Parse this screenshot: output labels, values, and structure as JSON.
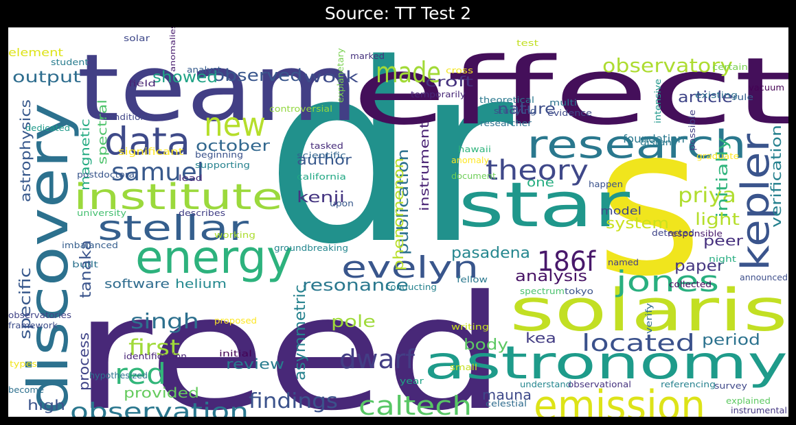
{
  "title": "Source: TT Test 2",
  "background": "#ffffff",
  "frame_color": "#000000",
  "colormap": "viridis",
  "words": [
    {
      "text": "dr",
      "color": "#21918c"
    },
    {
      "text": "reed",
      "color": "#482878"
    },
    {
      "text": "s",
      "color": "#f0e51d"
    },
    {
      "text": "effect",
      "color": "#440f5a"
    },
    {
      "text": "team",
      "color": "#423f85"
    },
    {
      "text": "discovery",
      "color": "#2c718e"
    },
    {
      "text": "solaris",
      "color": "#c2df23"
    },
    {
      "text": "star",
      "color": "#1f978b"
    },
    {
      "text": "astronomy",
      "color": "#1e9b8a"
    },
    {
      "text": "emission",
      "color": "#dde318"
    },
    {
      "text": "energy",
      "color": "#2db27d"
    },
    {
      "text": "research",
      "color": "#2a788e"
    },
    {
      "text": "institute",
      "color": "#9bd93c"
    },
    {
      "text": "stellar",
      "color": "#355f8d"
    },
    {
      "text": "kepler",
      "color": "#3a548c"
    },
    {
      "text": "186f",
      "color": "#48186a"
    },
    {
      "text": "data",
      "color": "#3e4a89"
    },
    {
      "text": "new",
      "color": "#b5de2b"
    },
    {
      "text": "evelyn",
      "color": "#39568c"
    },
    {
      "text": "made",
      "color": "#a2da37"
    },
    {
      "text": "samuel",
      "color": "#38598c"
    },
    {
      "text": "theory",
      "color": "#3f4889"
    },
    {
      "text": "jones",
      "color": "#29af7f"
    },
    {
      "text": "observation",
      "color": "#2a778e"
    },
    {
      "text": "caltech",
      "color": "#58c765"
    },
    {
      "text": "located",
      "color": "#3b518b"
    },
    {
      "text": "dwarf",
      "color": "#433e85"
    },
    {
      "text": "observatory",
      "color": "#addc30"
    },
    {
      "text": "red",
      "color": "#32b67a"
    },
    {
      "text": "findings",
      "color": "#3b528b"
    },
    {
      "text": "first",
      "color": "#a0da39"
    },
    {
      "text": "singh",
      "color": "#2d708e"
    },
    {
      "text": "priya",
      "color": "#b0dd2f"
    },
    {
      "text": "resonance",
      "color": "#2a788e"
    },
    {
      "text": "analysis",
      "color": "#471365"
    },
    {
      "text": "pasadena",
      "color": "#24868e"
    },
    {
      "text": "observed",
      "color": "#39568c"
    },
    {
      "text": "output",
      "color": "#2e6d8e"
    },
    {
      "text": "showed",
      "color": "#20a386"
    },
    {
      "text": "work",
      "color": "#3e4c8a"
    },
    {
      "text": "croft",
      "color": "#46337f"
    },
    {
      "text": "nature",
      "color": "#3d4e8a"
    },
    {
      "text": "article",
      "color": "#404688"
    },
    {
      "text": "october",
      "color": "#31678e"
    },
    {
      "text": "kenji",
      "color": "#453581"
    },
    {
      "text": "author",
      "color": "#38588c"
    },
    {
      "text": "publication",
      "color": "#2c718e"
    },
    {
      "text": "phenomenon",
      "color": "#b8de29"
    },
    {
      "text": "instrument",
      "color": "#482173"
    },
    {
      "text": "verification",
      "color": "#26818e"
    },
    {
      "text": "initially",
      "color": "#2fb47c"
    },
    {
      "text": "light",
      "color": "#b5de2b"
    },
    {
      "text": "system",
      "color": "#cae11f"
    },
    {
      "text": "peer",
      "color": "#46307e"
    },
    {
      "text": "paper",
      "color": "#453781"
    },
    {
      "text": "period",
      "color": "#2c728e"
    },
    {
      "text": "kea",
      "color": "#433d84"
    },
    {
      "text": "body",
      "color": "#5cc863"
    },
    {
      "text": "pole",
      "color": "#9fda3a"
    },
    {
      "text": "asymmetric",
      "color": "#26828e"
    },
    {
      "text": "review",
      "color": "#287c8e"
    },
    {
      "text": "mauna",
      "color": "#3e4989"
    },
    {
      "text": "provided",
      "color": "#65cb5e"
    },
    {
      "text": "process",
      "color": "#404588"
    },
    {
      "text": "high",
      "color": "#3a538b"
    },
    {
      "text": "tanaka",
      "color": "#3a548c"
    },
    {
      "text": "software",
      "color": "#2f6c8e"
    },
    {
      "text": "helium",
      "color": "#23888e"
    },
    {
      "text": "specific",
      "color": "#38588c"
    },
    {
      "text": "astrophysics",
      "color": "#38598c"
    },
    {
      "text": "magnetic",
      "color": "#25ab82"
    },
    {
      "text": "spectral",
      "color": "#4ec36b"
    },
    {
      "text": "element",
      "color": "#dde318"
    },
    {
      "text": "one",
      "color": "#27ad81"
    },
    {
      "text": "model",
      "color": "#3f4788"
    },
    {
      "text": "foundation",
      "color": "#2a788e"
    },
    {
      "text": "significant",
      "color": "#fde725"
    },
    {
      "text": "student",
      "color": "#287c8e"
    },
    {
      "text": "anomalies",
      "color": "#481c6e"
    },
    {
      "text": "analyst",
      "color": "#365c8d"
    },
    {
      "text": "field",
      "color": "#482374"
    },
    {
      "text": "conditions",
      "color": "#404688"
    },
    {
      "text": "dedicated",
      "color": "#1f9a8a"
    },
    {
      "text": "beginning",
      "color": "#3b528b"
    },
    {
      "text": "supporting",
      "color": "#26828e"
    },
    {
      "text": "postdoctoral",
      "color": "#39568c"
    },
    {
      "text": "lead",
      "color": "#472c7a"
    },
    {
      "text": "university",
      "color": "#44bf70"
    },
    {
      "text": "describes",
      "color": "#423f85"
    },
    {
      "text": "working",
      "color": "#addc30"
    },
    {
      "text": "groundbreaking",
      "color": "#24868e"
    },
    {
      "text": "imbalanced",
      "color": "#355e8d"
    },
    {
      "text": "built",
      "color": "#2c728e"
    },
    {
      "text": "observatories",
      "color": "#414487"
    },
    {
      "text": "framework",
      "color": "#3d4d8a"
    },
    {
      "text": "proposed",
      "color": "#fde725"
    },
    {
      "text": "initial",
      "color": "#440154"
    },
    {
      "text": "identification",
      "color": "#482475"
    },
    {
      "text": "hypothesized",
      "color": "#2c738e"
    },
    {
      "text": "types",
      "color": "#f1e51d"
    },
    {
      "text": "become",
      "color": "#2d708e"
    },
    {
      "text": "solar",
      "color": "#3f4889"
    },
    {
      "text": "explanetary",
      "color": "#7ad151"
    },
    {
      "text": "marked",
      "color": "#46327e"
    },
    {
      "text": "test",
      "color": "#c2df23"
    },
    {
      "text": "cross",
      "color": "#f3e51e"
    },
    {
      "text": "temporarily",
      "color": "#482878"
    },
    {
      "text": "theoretical",
      "color": "#2a788e"
    },
    {
      "text": "studying",
      "color": "#3b528b"
    },
    {
      "text": "multi",
      "color": "#2c728e"
    },
    {
      "text": "evidence",
      "color": "#3e4a89"
    },
    {
      "text": "researcher",
      "color": "#2c728e"
    },
    {
      "text": "controversial",
      "color": "#93d741"
    },
    {
      "text": "tasked",
      "color": "#472d7b"
    },
    {
      "text": "scientific",
      "color": "#32648e"
    },
    {
      "text": "california",
      "color": "#22a884"
    },
    {
      "text": "upon",
      "color": "#38598c"
    },
    {
      "text": "hawaii",
      "color": "#2fb47c"
    },
    {
      "text": "anomaly",
      "color": "#fde725"
    },
    {
      "text": "document",
      "color": "#6ece58"
    },
    {
      "text": "happen",
      "color": "#3b528b"
    },
    {
      "text": "conducting",
      "color": "#26828e"
    },
    {
      "text": "fellow",
      "color": "#2a788e"
    },
    {
      "text": "spectrum",
      "color": "#4ac16d"
    },
    {
      "text": "tokyo",
      "color": "#3a538b"
    },
    {
      "text": "named",
      "color": "#433e85"
    },
    {
      "text": "writing",
      "color": "#c8e020"
    },
    {
      "text": "small",
      "color": "#c5e021"
    },
    {
      "text": "year",
      "color": "#20a386"
    },
    {
      "text": "understand",
      "color": "#24868e"
    },
    {
      "text": "observational",
      "color": "#46337f"
    },
    {
      "text": "referencing",
      "color": "#26818e"
    },
    {
      "text": "celestial",
      "color": "#2f6c8e"
    },
    {
      "text": "survey",
      "color": "#3f4889"
    },
    {
      "text": "explained",
      "color": "#5ec962"
    },
    {
      "text": "instrumental",
      "color": "#453882"
    },
    {
      "text": "collected",
      "color": "#46085c"
    },
    {
      "text": "announced",
      "color": "#3d4e8a"
    },
    {
      "text": "night",
      "color": "#27ad81"
    },
    {
      "text": "verify",
      "color": "#306a8e"
    },
    {
      "text": "responsible",
      "color": "#481a6c"
    },
    {
      "text": "detected",
      "color": "#404588"
    },
    {
      "text": "graduate",
      "color": "#fde725"
    },
    {
      "text": "possible",
      "color": "#423f85"
    },
    {
      "text": "distant",
      "color": "#297a8e"
    },
    {
      "text": "intensive",
      "color": "#1f978b"
    },
    {
      "text": "existing",
      "color": "#2d708e"
    },
    {
      "text": "rule",
      "color": "#355f8d"
    },
    {
      "text": "vacuum",
      "color": "#440154"
    },
    {
      "text": "certain",
      "color": "#7ad151"
    }
  ]
}
